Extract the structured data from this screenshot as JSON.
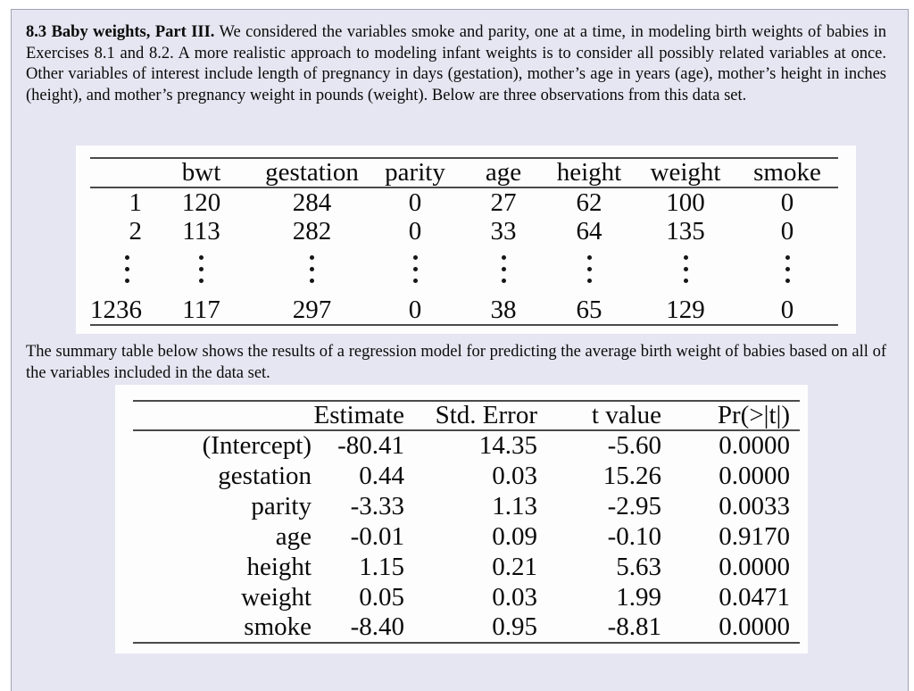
{
  "colors": {
    "page_background": "#ffffff",
    "exercise_background": "#e6e6f2",
    "exercise_border": "#9fa3b3",
    "table_panel_background": "#fdfdfe",
    "table_rule": "#4a4a4a",
    "text": "#0a0a0a"
  },
  "exercise": {
    "title": "8.3 Baby weights, Part III.",
    "intro_text": " We considered the variables smoke and parity, one at a time, in modeling birth weights of babies in Exercises 8.1 and 8.2. A more realistic approach to modeling infant weights is to consider all possibly related variables at once. Other variables of interest include length of pregnancy in days (gestation), mother’s age in years (age), mother’s height in inches (height), and mother’s pregnancy weight in pounds (weight). Below are three observations from this data set.",
    "summary_text": "The summary table below shows the results of a regression model for predicting the average birth weight of babies based on all of the variables included in the data set."
  },
  "data_table": {
    "columns": [
      "",
      "bwt",
      "gestation",
      "parity",
      "age",
      "height",
      "weight",
      "smoke"
    ],
    "rows": [
      [
        "1",
        "120",
        "284",
        "0",
        "27",
        "62",
        "100",
        "0"
      ],
      [
        "2",
        "113",
        "282",
        "0",
        "33",
        "64",
        "135",
        "0"
      ],
      [
        "⋮",
        "⋮",
        "⋮",
        "⋮",
        "⋮",
        "⋮",
        "⋮",
        "⋮"
      ],
      [
        "1236",
        "117",
        "297",
        "0",
        "38",
        "65",
        "129",
        "0"
      ]
    ]
  },
  "regression_table": {
    "columns": [
      "",
      "Estimate",
      "Std. Error",
      "t value",
      "Pr(>|t|)"
    ],
    "rows": [
      [
        "(Intercept)",
        "-80.41",
        "14.35",
        "-5.60",
        "0.0000"
      ],
      [
        "gestation",
        "0.44",
        "0.03",
        "15.26",
        "0.0000"
      ],
      [
        "parity",
        "-3.33",
        "1.13",
        "-2.95",
        "0.0033"
      ],
      [
        "age",
        "-0.01",
        "0.09",
        "-0.10",
        "0.9170"
      ],
      [
        "height",
        "1.15",
        "0.21",
        "5.63",
        "0.0000"
      ],
      [
        "weight",
        "0.05",
        "0.03",
        "1.99",
        "0.0471"
      ],
      [
        "smoke",
        "-8.40",
        "0.95",
        "-8.81",
        "0.0000"
      ]
    ]
  }
}
